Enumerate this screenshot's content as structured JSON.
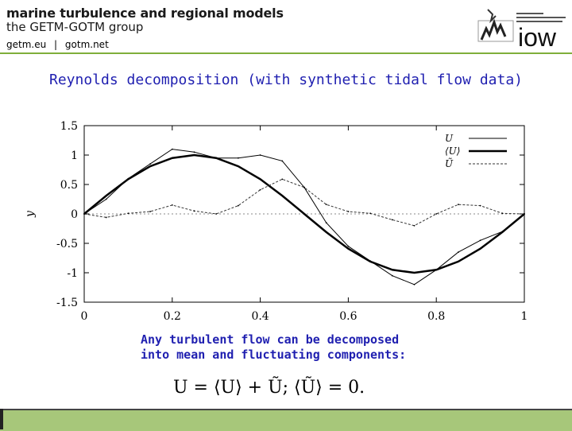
{
  "header": {
    "title": "marine turbulence and regional models",
    "subtitle": "the GETM-GOTM group",
    "link1": "getm.eu",
    "separator": "|",
    "link2": "gotm.net",
    "logo_text": "iow",
    "accent_color": "#7fae3a"
  },
  "slide": {
    "title": "Reynolds decomposition (with synthetic tidal flow data)",
    "description_line1": "Any turbulent flow can be decomposed",
    "description_line2": "into mean and fluctuating components:",
    "formula": "U = ⟨U⟩ + Ũ;   ⟨Ũ⟩ = 0.",
    "title_color": "#1f1fb0"
  },
  "chart_data": {
    "type": "line",
    "ylabel": "y",
    "xlabel": "",
    "xlim": [
      0,
      1
    ],
    "ylim": [
      -1.5,
      1.5
    ],
    "xticks": [
      "0",
      "0.2",
      "0.4",
      "0.6",
      "0.8",
      "1"
    ],
    "yticks": [
      "1.5",
      "1",
      "0.5",
      "0",
      "-0.5",
      "-1",
      "-1.5"
    ],
    "legend_position": "top-right",
    "series": [
      {
        "name": "U",
        "style": "thin solid",
        "description_values": "noisy sum",
        "x": [
          0,
          0.05,
          0.1,
          0.15,
          0.2,
          0.25,
          0.3,
          0.35,
          0.4,
          0.45,
          0.5,
          0.55,
          0.6,
          0.65,
          0.7,
          0.75,
          0.8,
          0.85,
          0.9,
          0.95,
          1.0
        ],
        "y": [
          0.0,
          0.25,
          0.6,
          0.85,
          1.1,
          1.05,
          0.95,
          0.95,
          1.0,
          0.9,
          0.45,
          -0.15,
          -0.55,
          -0.8,
          -1.05,
          -1.2,
          -0.95,
          -0.65,
          -0.45,
          -0.3,
          0.0
        ]
      },
      {
        "name": "⟨U⟩",
        "style": "thick solid",
        "x": [
          0,
          0.05,
          0.1,
          0.15,
          0.2,
          0.25,
          0.3,
          0.35,
          0.4,
          0.45,
          0.5,
          0.55,
          0.6,
          0.65,
          0.7,
          0.75,
          0.8,
          0.85,
          0.9,
          0.95,
          1.0
        ],
        "y": [
          0.0,
          0.31,
          0.59,
          0.81,
          0.95,
          1.0,
          0.95,
          0.81,
          0.59,
          0.31,
          0.0,
          -0.31,
          -0.59,
          -0.81,
          -0.95,
          -1.0,
          -0.95,
          -0.81,
          -0.59,
          -0.31,
          0.0
        ]
      },
      {
        "name": "Ũ",
        "style": "dashed",
        "x": [
          0,
          0.05,
          0.1,
          0.15,
          0.2,
          0.25,
          0.3,
          0.35,
          0.4,
          0.45,
          0.5,
          0.55,
          0.6,
          0.65,
          0.7,
          0.75,
          0.8,
          0.85,
          0.9,
          0.95,
          1.0
        ],
        "y": [
          0.0,
          -0.06,
          0.01,
          0.04,
          0.15,
          0.05,
          0.0,
          0.14,
          0.41,
          0.59,
          0.45,
          0.16,
          0.04,
          0.01,
          -0.1,
          -0.2,
          0.0,
          0.16,
          0.14,
          0.01,
          0.0
        ]
      }
    ]
  }
}
